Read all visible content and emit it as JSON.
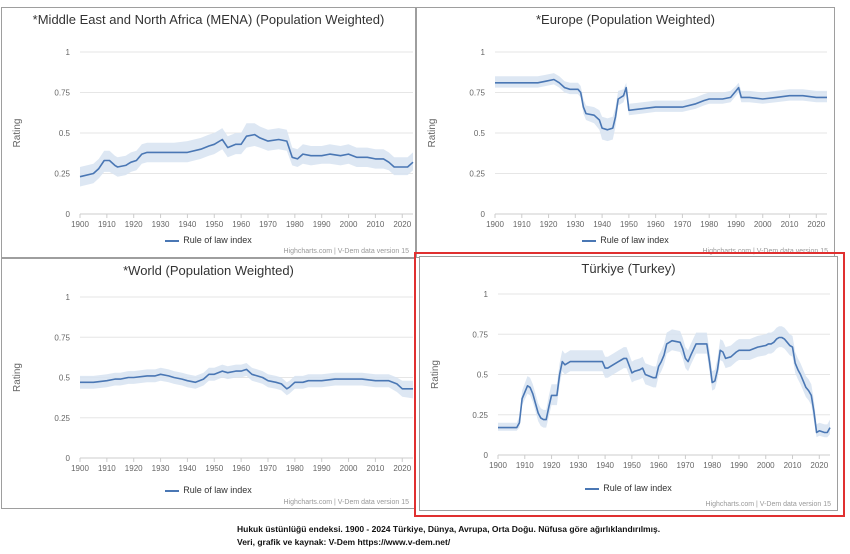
{
  "caption": {
    "line1": "Hukuk üstünlüğü endeksi. 1900 - 2024 Türkiye, Dünya, Avrupa, Orta Doğu. Nüfusa göre ağırlıklandırılmış.",
    "line2": "Veri, grafik ve kaynak: V-Dem https://www.v-dem.net/"
  },
  "colors": {
    "line": "#4a77b4",
    "band": "#d7e3f1",
    "highlight": "#e03030",
    "grid": "#e6e6e6"
  },
  "chart_data": [
    {
      "id": "mena",
      "type": "line",
      "title": "*Middle East and North Africa (MENA) (Population Weighted)",
      "ylabel": "Rating",
      "xlabel": "",
      "xlim": [
        1900,
        2024
      ],
      "ylim": [
        0,
        1
      ],
      "yticks": [
        "0",
        "0.25",
        "0.5",
        "0.75",
        "1"
      ],
      "xticks": [
        "1900",
        "1910",
        "1920",
        "1930",
        "1940",
        "1950",
        "1960",
        "1970",
        "1980",
        "1990",
        "2000",
        "2010",
        "2020"
      ],
      "legend": "Rule of law index",
      "credit": "Highcharts.com | V-Dem data version 15",
      "series": [
        {
          "name": "Rule of law index",
          "x": [
            1900,
            1905,
            1907,
            1909,
            1911,
            1913,
            1914,
            1917,
            1919,
            1921,
            1922,
            1923,
            1925,
            1930,
            1935,
            1940,
            1945,
            1948,
            1950,
            1953,
            1955,
            1958,
            1960,
            1962,
            1965,
            1967,
            1970,
            1974,
            1977,
            1979,
            1981,
            1983,
            1986,
            1990,
            1993,
            1997,
            2000,
            2003,
            2007,
            2010,
            2013,
            2015,
            2017,
            2020,
            2022,
            2024
          ],
          "y": [
            0.23,
            0.25,
            0.28,
            0.33,
            0.33,
            0.3,
            0.29,
            0.3,
            0.32,
            0.33,
            0.35,
            0.37,
            0.38,
            0.38,
            0.38,
            0.38,
            0.4,
            0.42,
            0.43,
            0.46,
            0.41,
            0.43,
            0.43,
            0.48,
            0.49,
            0.47,
            0.45,
            0.46,
            0.45,
            0.35,
            0.34,
            0.37,
            0.36,
            0.36,
            0.37,
            0.36,
            0.37,
            0.35,
            0.35,
            0.34,
            0.34,
            0.32,
            0.29,
            0.29,
            0.29,
            0.32
          ],
          "lower": [
            0.17,
            0.19,
            0.22,
            0.26,
            0.26,
            0.24,
            0.23,
            0.24,
            0.26,
            0.27,
            0.29,
            0.31,
            0.32,
            0.32,
            0.32,
            0.32,
            0.34,
            0.36,
            0.37,
            0.4,
            0.35,
            0.37,
            0.37,
            0.41,
            0.42,
            0.41,
            0.39,
            0.4,
            0.39,
            0.3,
            0.29,
            0.31,
            0.3,
            0.31,
            0.31,
            0.3,
            0.31,
            0.29,
            0.29,
            0.28,
            0.28,
            0.27,
            0.24,
            0.24,
            0.24,
            0.27
          ],
          "upper": [
            0.29,
            0.31,
            0.34,
            0.39,
            0.39,
            0.36,
            0.35,
            0.36,
            0.38,
            0.39,
            0.41,
            0.43,
            0.44,
            0.44,
            0.44,
            0.45,
            0.47,
            0.49,
            0.5,
            0.53,
            0.48,
            0.5,
            0.5,
            0.56,
            0.56,
            0.54,
            0.52,
            0.53,
            0.52,
            0.41,
            0.4,
            0.43,
            0.42,
            0.42,
            0.43,
            0.42,
            0.43,
            0.41,
            0.41,
            0.4,
            0.4,
            0.38,
            0.35,
            0.35,
            0.35,
            0.38
          ]
        }
      ]
    },
    {
      "id": "europe",
      "type": "line",
      "title": "*Europe (Population Weighted)",
      "ylabel": "Rating",
      "xlabel": "",
      "xlim": [
        1900,
        2024
      ],
      "ylim": [
        0,
        1
      ],
      "yticks": [
        "0",
        "0.25",
        "0.5",
        "0.75",
        "1"
      ],
      "xticks": [
        "1900",
        "1910",
        "1920",
        "1930",
        "1940",
        "1950",
        "1960",
        "1970",
        "1980",
        "1990",
        "2000",
        "2010",
        "2020"
      ],
      "legend": "Rule of law index",
      "credit": "Highcharts.com | V-Dem data version 15",
      "series": [
        {
          "name": "Rule of law index",
          "x": [
            1900,
            1910,
            1916,
            1919,
            1922,
            1924,
            1926,
            1928,
            1931,
            1932,
            1933,
            1934,
            1937,
            1939,
            1940,
            1942,
            1944,
            1945,
            1946,
            1948,
            1949,
            1950,
            1955,
            1960,
            1965,
            1970,
            1975,
            1978,
            1980,
            1985,
            1988,
            1990,
            1991,
            1992,
            1995,
            2000,
            2005,
            2010,
            2015,
            2020,
            2024
          ],
          "y": [
            0.81,
            0.81,
            0.81,
            0.82,
            0.83,
            0.81,
            0.78,
            0.77,
            0.77,
            0.75,
            0.66,
            0.62,
            0.61,
            0.58,
            0.53,
            0.52,
            0.53,
            0.6,
            0.71,
            0.73,
            0.78,
            0.64,
            0.65,
            0.66,
            0.66,
            0.66,
            0.68,
            0.7,
            0.71,
            0.71,
            0.72,
            0.76,
            0.78,
            0.72,
            0.72,
            0.71,
            0.72,
            0.73,
            0.73,
            0.72,
            0.72
          ],
          "lower": [
            0.78,
            0.78,
            0.78,
            0.79,
            0.8,
            0.78,
            0.75,
            0.74,
            0.74,
            0.72,
            0.62,
            0.58,
            0.56,
            0.52,
            0.46,
            0.45,
            0.46,
            0.54,
            0.67,
            0.69,
            0.74,
            0.61,
            0.62,
            0.63,
            0.63,
            0.63,
            0.65,
            0.67,
            0.68,
            0.68,
            0.69,
            0.73,
            0.75,
            0.69,
            0.69,
            0.68,
            0.69,
            0.7,
            0.7,
            0.69,
            0.69
          ],
          "upper": [
            0.85,
            0.85,
            0.85,
            0.86,
            0.87,
            0.85,
            0.82,
            0.81,
            0.81,
            0.79,
            0.71,
            0.67,
            0.66,
            0.64,
            0.6,
            0.59,
            0.6,
            0.66,
            0.76,
            0.77,
            0.81,
            0.68,
            0.69,
            0.7,
            0.7,
            0.7,
            0.72,
            0.74,
            0.75,
            0.75,
            0.76,
            0.79,
            0.81,
            0.76,
            0.76,
            0.75,
            0.76,
            0.77,
            0.77,
            0.76,
            0.76
          ]
        }
      ]
    },
    {
      "id": "world",
      "type": "line",
      "title": "*World (Population Weighted)",
      "ylabel": "Rating",
      "xlabel": "",
      "xlim": [
        1900,
        2024
      ],
      "ylim": [
        0,
        1
      ],
      "yticks": [
        "0",
        "0.25",
        "0.5",
        "0.75",
        "1"
      ],
      "xticks": [
        "1900",
        "1910",
        "1920",
        "1930",
        "1940",
        "1950",
        "1960",
        "1970",
        "1980",
        "1990",
        "2000",
        "2010",
        "2020"
      ],
      "legend": "Rule of law index",
      "credit": "Highcharts.com | V-Dem data version 15",
      "series": [
        {
          "name": "Rule of law index",
          "x": [
            1900,
            1905,
            1910,
            1913,
            1915,
            1918,
            1920,
            1925,
            1928,
            1930,
            1933,
            1935,
            1938,
            1940,
            1943,
            1946,
            1948,
            1950,
            1953,
            1955,
            1958,
            1960,
            1962,
            1964,
            1966,
            1968,
            1970,
            1973,
            1975,
            1977,
            1978,
            1980,
            1983,
            1985,
            1990,
            1995,
            2000,
            2005,
            2010,
            2015,
            2018,
            2020,
            2024
          ],
          "y": [
            0.47,
            0.47,
            0.48,
            0.49,
            0.49,
            0.5,
            0.5,
            0.51,
            0.51,
            0.52,
            0.51,
            0.5,
            0.49,
            0.48,
            0.47,
            0.49,
            0.52,
            0.52,
            0.54,
            0.53,
            0.54,
            0.54,
            0.55,
            0.52,
            0.51,
            0.5,
            0.48,
            0.47,
            0.46,
            0.43,
            0.44,
            0.47,
            0.47,
            0.48,
            0.48,
            0.49,
            0.49,
            0.49,
            0.48,
            0.48,
            0.46,
            0.43,
            0.43
          ],
          "lower": [
            0.43,
            0.43,
            0.44,
            0.45,
            0.45,
            0.46,
            0.46,
            0.47,
            0.47,
            0.48,
            0.47,
            0.46,
            0.45,
            0.44,
            0.43,
            0.45,
            0.48,
            0.48,
            0.5,
            0.49,
            0.5,
            0.5,
            0.51,
            0.48,
            0.47,
            0.46,
            0.44,
            0.43,
            0.42,
            0.39,
            0.4,
            0.43,
            0.43,
            0.44,
            0.44,
            0.45,
            0.45,
            0.45,
            0.44,
            0.44,
            0.41,
            0.38,
            0.37
          ],
          "upper": [
            0.51,
            0.51,
            0.52,
            0.53,
            0.53,
            0.54,
            0.54,
            0.55,
            0.55,
            0.56,
            0.55,
            0.54,
            0.53,
            0.52,
            0.51,
            0.53,
            0.56,
            0.56,
            0.58,
            0.57,
            0.58,
            0.58,
            0.59,
            0.56,
            0.55,
            0.54,
            0.52,
            0.51,
            0.5,
            0.47,
            0.48,
            0.51,
            0.51,
            0.52,
            0.52,
            0.53,
            0.53,
            0.53,
            0.52,
            0.52,
            0.5,
            0.48,
            0.48
          ]
        }
      ]
    },
    {
      "id": "turkey",
      "type": "line",
      "title": "Türkiye (Turkey)",
      "ylabel": "Rating",
      "xlabel": "",
      "xlim": [
        1900,
        2024
      ],
      "ylim": [
        0,
        1
      ],
      "yticks": [
        "0",
        "0.25",
        "0.5",
        "0.75",
        "1"
      ],
      "xticks": [
        "1900",
        "1910",
        "1920",
        "1930",
        "1940",
        "1950",
        "1960",
        "1970",
        "1980",
        "1990",
        "2000",
        "2010",
        "2020"
      ],
      "legend": "Rule of law index",
      "credit": "Highcharts.com | V-Dem data version 15",
      "series": [
        {
          "name": "Rule of law index",
          "x": [
            1900,
            1907,
            1908,
            1909,
            1911,
            1912,
            1913,
            1914,
            1915,
            1916,
            1917,
            1918,
            1919,
            1920,
            1922,
            1923,
            1924,
            1925,
            1926,
            1927,
            1930,
            1935,
            1937,
            1939,
            1940,
            1941,
            1943,
            1945,
            1946,
            1947,
            1948,
            1950,
            1951,
            1953,
            1954,
            1955,
            1958,
            1959,
            1960,
            1961,
            1962,
            1963,
            1964,
            1965,
            1968,
            1969,
            1970,
            1971,
            1972,
            1974,
            1977,
            1978,
            1979,
            1980,
            1981,
            1982,
            1983,
            1984,
            1985,
            1987,
            1989,
            1990,
            1994,
            1997,
            2000,
            2001,
            2002,
            2003,
            2004,
            2005,
            2006,
            2007,
            2008,
            2009,
            2010,
            2011,
            2012,
            2013,
            2014,
            2015,
            2016,
            2017,
            2018,
            2019,
            2020,
            2022,
            2023,
            2024
          ],
          "y": [
            0.17,
            0.17,
            0.2,
            0.35,
            0.43,
            0.42,
            0.38,
            0.32,
            0.26,
            0.23,
            0.22,
            0.22,
            0.3,
            0.37,
            0.37,
            0.5,
            0.58,
            0.56,
            0.57,
            0.58,
            0.58,
            0.58,
            0.58,
            0.58,
            0.54,
            0.54,
            0.56,
            0.58,
            0.59,
            0.6,
            0.6,
            0.51,
            0.52,
            0.53,
            0.54,
            0.5,
            0.48,
            0.48,
            0.55,
            0.58,
            0.62,
            0.69,
            0.7,
            0.71,
            0.7,
            0.66,
            0.6,
            0.58,
            0.62,
            0.69,
            0.69,
            0.69,
            0.58,
            0.45,
            0.46,
            0.53,
            0.65,
            0.64,
            0.6,
            0.61,
            0.64,
            0.65,
            0.65,
            0.67,
            0.68,
            0.69,
            0.69,
            0.7,
            0.72,
            0.73,
            0.73,
            0.72,
            0.7,
            0.68,
            0.67,
            0.57,
            0.53,
            0.5,
            0.46,
            0.42,
            0.4,
            0.37,
            0.27,
            0.14,
            0.15,
            0.14,
            0.14,
            0.17
          ],
          "lower": [
            0.15,
            0.15,
            0.17,
            0.31,
            0.38,
            0.37,
            0.33,
            0.27,
            0.21,
            0.18,
            0.17,
            0.17,
            0.24,
            0.31,
            0.31,
            0.44,
            0.52,
            0.5,
            0.51,
            0.52,
            0.52,
            0.52,
            0.52,
            0.52,
            0.48,
            0.48,
            0.5,
            0.52,
            0.53,
            0.54,
            0.54,
            0.45,
            0.46,
            0.47,
            0.48,
            0.44,
            0.42,
            0.42,
            0.49,
            0.52,
            0.56,
            0.63,
            0.64,
            0.65,
            0.64,
            0.6,
            0.54,
            0.52,
            0.56,
            0.63,
            0.63,
            0.63,
            0.52,
            0.4,
            0.41,
            0.47,
            0.59,
            0.58,
            0.54,
            0.55,
            0.58,
            0.59,
            0.59,
            0.61,
            0.62,
            0.63,
            0.63,
            0.64,
            0.66,
            0.67,
            0.67,
            0.66,
            0.64,
            0.62,
            0.61,
            0.51,
            0.47,
            0.44,
            0.4,
            0.36,
            0.34,
            0.31,
            0.21,
            0.11,
            0.12,
            0.11,
            0.11,
            0.13
          ],
          "upper": [
            0.2,
            0.2,
            0.24,
            0.4,
            0.49,
            0.48,
            0.44,
            0.38,
            0.32,
            0.29,
            0.28,
            0.28,
            0.37,
            0.44,
            0.44,
            0.57,
            0.65,
            0.63,
            0.64,
            0.65,
            0.65,
            0.65,
            0.65,
            0.65,
            0.61,
            0.61,
            0.63,
            0.65,
            0.66,
            0.67,
            0.67,
            0.58,
            0.59,
            0.6,
            0.61,
            0.57,
            0.55,
            0.55,
            0.62,
            0.65,
            0.69,
            0.76,
            0.77,
            0.78,
            0.77,
            0.73,
            0.67,
            0.65,
            0.69,
            0.76,
            0.76,
            0.76,
            0.65,
            0.52,
            0.53,
            0.6,
            0.72,
            0.71,
            0.67,
            0.68,
            0.71,
            0.72,
            0.72,
            0.74,
            0.75,
            0.76,
            0.76,
            0.77,
            0.79,
            0.8,
            0.8,
            0.79,
            0.77,
            0.75,
            0.74,
            0.64,
            0.6,
            0.57,
            0.53,
            0.49,
            0.47,
            0.44,
            0.34,
            0.19,
            0.2,
            0.19,
            0.19,
            0.22
          ]
        }
      ]
    }
  ]
}
